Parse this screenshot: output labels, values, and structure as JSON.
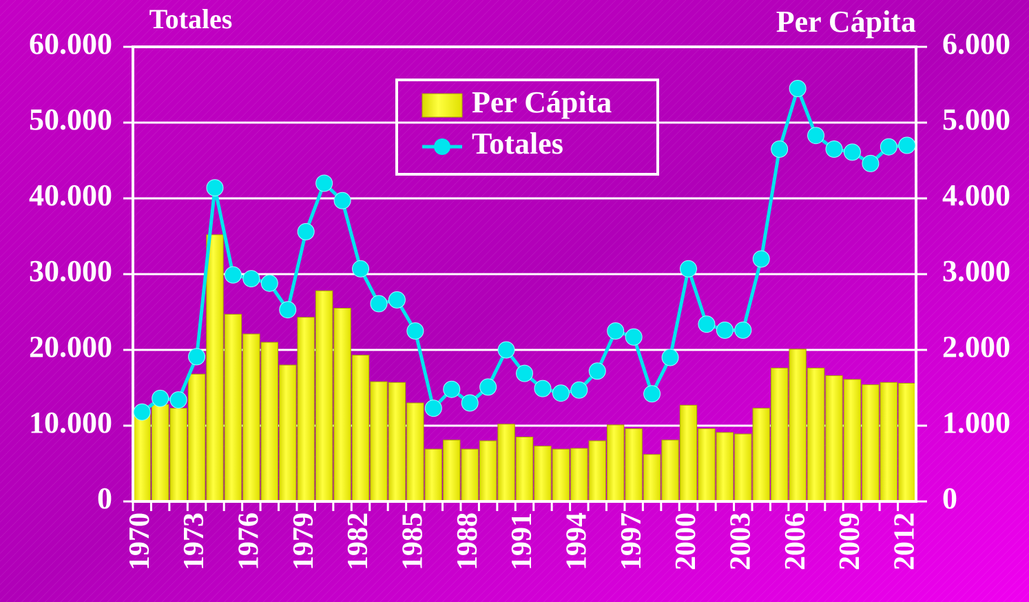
{
  "chart_data": {
    "type": "bar",
    "ylabel": "Totales",
    "y2label": "Per Cápita",
    "categories": [
      "1970",
      null,
      null,
      "1973",
      null,
      null,
      "1976",
      null,
      null,
      "1979",
      null,
      null,
      "1982",
      null,
      null,
      "1985",
      null,
      null,
      "1988",
      null,
      null,
      "1991",
      null,
      null,
      "1994",
      null,
      null,
      "1997",
      null,
      null,
      "2000",
      null,
      null,
      "2003",
      null,
      null,
      "2006",
      null,
      null,
      "2009",
      null,
      null,
      "2012"
    ],
    "ylim": [
      0,
      60000
    ],
    "yticks": [
      0,
      {
        "value": 10000,
        "label": "10.000"
      },
      {
        "value": 20000,
        "label": "20.000"
      },
      {
        "value": 30000,
        "label": "30.000"
      },
      {
        "value": 40000,
        "label": "40.000"
      },
      {
        "value": 50000,
        "label": "50.000"
      },
      {
        "value": 60000,
        "label": "60.000"
      }
    ],
    "y2lim": [
      0,
      6000
    ],
    "y2ticks": [
      0,
      {
        "value": 1000,
        "label": "1.000"
      },
      {
        "value": 2000,
        "label": "2.000"
      },
      {
        "value": 3000,
        "label": "3.000"
      },
      {
        "value": 4000,
        "label": "4.000"
      },
      {
        "value": 5000,
        "label": "5.000"
      },
      {
        "value": 6000,
        "label": "6.000"
      }
    ],
    "grid": true,
    "legend": "top",
    "series": [
      {
        "name": "Per Cápita",
        "type": "bar",
        "axis": "y2",
        "color": "#ffff00",
        "values": [
          1150,
          1280,
          1230,
          1680,
          3520,
          2470,
          2210,
          2100,
          1800,
          2430,
          2780,
          2550,
          1930,
          1580,
          1570,
          1300,
          690,
          810,
          690,
          800,
          1020,
          850,
          730,
          690,
          700,
          800,
          1010,
          960,
          620,
          810,
          1270,
          960,
          910,
          890,
          1230,
          1760,
          2010,
          1760,
          1660,
          1610,
          1540,
          1570,
          1560
        ]
      },
      {
        "name": "Totales",
        "type": "line",
        "color": "#00e5ee",
        "values": [
          11800,
          13600,
          13400,
          19100,
          41400,
          29900,
          29400,
          28800,
          25300,
          35600,
          42000,
          39700,
          30700,
          26100,
          26600,
          22500,
          12300,
          14800,
          13000,
          15100,
          20000,
          16900,
          14900,
          14300,
          14700,
          17200,
          22500,
          21700,
          14200,
          19000,
          30700,
          23400,
          22600,
          22600,
          32000,
          46500,
          54500,
          48300,
          46500,
          46100,
          44600,
          46800,
          47000
        ]
      }
    ]
  }
}
